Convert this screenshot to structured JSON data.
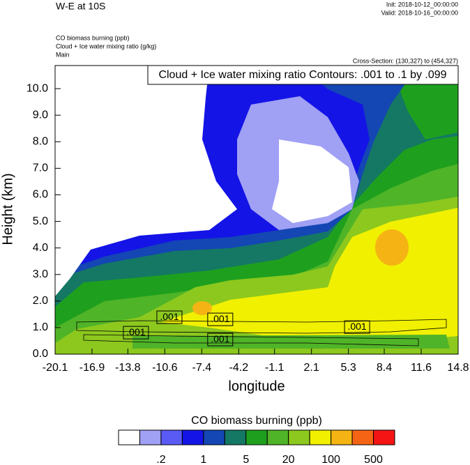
{
  "header": {
    "title": "W-E at 10S",
    "init": "Init: 2018-10-12_00:00:00",
    "valid": "Valid: 2018-10-16_00:00:00",
    "fields": [
      "CO biomass burning   (ppb)",
      "Cloud + Ice water mixing ratio   (g/kg)",
      "Main"
    ],
    "cross_section": "Cross-Section: (130,327) to (454,327)"
  },
  "chart_data": {
    "type": "contour",
    "title": "Cloud + Ice water mixing ratio Contours: .001 to .1 by .099",
    "x_label": "longitude",
    "y_label": "Height (km)",
    "xlim": [
      -20.1,
      14.8
    ],
    "ylim": [
      0,
      10.87
    ],
    "xticks": [
      -20.1,
      -16.9,
      -13.8,
      -10.6,
      -7.4,
      -4.2,
      -1.1,
      2.1,
      5.3,
      8.4,
      11.6,
      14.8
    ],
    "yticks": [
      {
        "value": 0,
        "label": "0.0"
      },
      {
        "value": 1,
        "label": "1.0"
      },
      {
        "value": 2,
        "label": "2.0"
      },
      {
        "value": 3,
        "label": "3.0"
      },
      {
        "value": 4,
        "label": "4.0"
      },
      {
        "value": 5,
        "label": "5.0"
      },
      {
        "value": 6,
        "label": "6.0"
      },
      {
        "value": 7,
        "label": "7.0"
      },
      {
        "value": 8,
        "label": "8.0"
      },
      {
        "value": 9,
        "label": "9.0"
      },
      {
        "value": 10,
        "label": "10.0"
      }
    ],
    "contour_labels": [
      {
        "value": 0.001,
        "label": ".001",
        "x": -10.2,
        "y": 1.39
      },
      {
        "value": 0.001,
        "label": ".001",
        "x": -5.8,
        "y": 1.31
      },
      {
        "value": 0.001,
        "label": ".001",
        "x": -13.1,
        "y": 0.81
      },
      {
        "value": 0.001,
        "label": ".001",
        "x": -5.8,
        "y": 0.55
      },
      {
        "value": 0.001,
        "label": ".001",
        "x": 6.05,
        "y": 1.02
      }
    ],
    "colorbar": {
      "title": "CO biomass burning  (ppb)",
      "colors": [
        "#ffffff",
        "#a0a0f5",
        "#5a5af5",
        "#1414e6",
        "#1446b4",
        "#147864",
        "#1ea01e",
        "#50b428",
        "#8cc81e",
        "#f0f000",
        "#f5b414",
        "#f56414",
        "#f51414"
      ],
      "levels": [
        {
          "value": 0.2,
          "label": ".2"
        },
        1,
        5,
        20,
        100,
        500
      ]
    }
  }
}
